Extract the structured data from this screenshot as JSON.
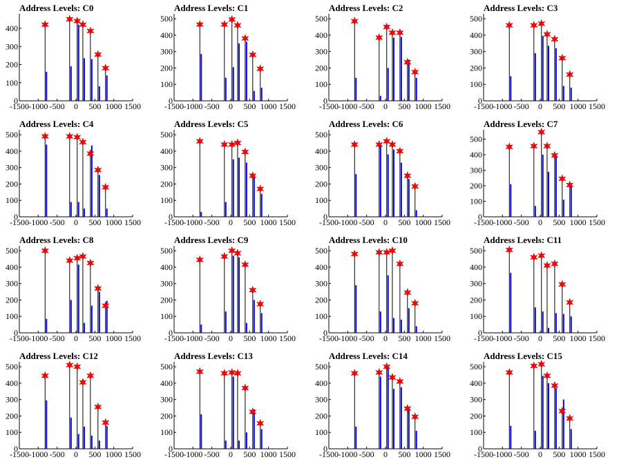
{
  "figure": {
    "tick_values": [
      -1500,
      -1000,
      -500,
      0,
      500,
      1000,
      1500
    ],
    "x_tick_labels": [
      "-1500",
      "-1000",
      "-500",
      "0",
      "500",
      "1000",
      "1500"
    ],
    "colors": {
      "histogram": "#0000ff",
      "marker": "#ff0000",
      "axis": "#000000"
    }
  },
  "chart_data": [
    {
      "type": "bar",
      "title": "Address Levels: C0",
      "xlim": [
        -1500,
        1500
      ],
      "ylim": [
        0,
        480
      ],
      "y_ticks": [
        "0",
        "100",
        "200",
        "300",
        "400"
      ],
      "x": [
        -800,
        -150,
        50,
        200,
        400,
        600,
        800
      ],
      "levels": [
        420,
        450,
        440,
        420,
        385,
        255,
        180
      ],
      "series": [
        {
          "values": [
            160,
            190,
            420,
            235,
            230,
            80,
            140
          ]
        }
      ]
    },
    {
      "type": "bar",
      "title": "Address Levels: C1",
      "xlim": [
        -1500,
        1500
      ],
      "ylim": [
        0,
        530
      ],
      "y_ticks": [
        "0",
        "100",
        "200",
        "300",
        "400",
        "500"
      ],
      "x": [
        -800,
        -150,
        50,
        200,
        400,
        600,
        800
      ],
      "levels": [
        465,
        465,
        495,
        460,
        380,
        280,
        195
      ],
      "series": [
        {
          "values": [
            285,
            140,
            205,
            350,
            360,
            60,
            80
          ]
        }
      ]
    },
    {
      "type": "bar",
      "title": "Address Levels: C2",
      "xlim": [
        -1500,
        1500
      ],
      "ylim": [
        0,
        530
      ],
      "y_ticks": [
        "0",
        "100",
        "200",
        "300",
        "400",
        "500"
      ],
      "x": [
        -800,
        -150,
        50,
        200,
        400,
        600,
        800
      ],
      "levels": [
        485,
        385,
        450,
        415,
        415,
        235,
        175
      ],
      "series": [
        {
          "values": [
            140,
            30,
            200,
            385,
            390,
            250,
            140
          ]
        }
      ]
    },
    {
      "type": "bar",
      "title": "Address Levels: C3",
      "xlim": [
        -1500,
        1500
      ],
      "ylim": [
        0,
        530
      ],
      "y_ticks": [
        "0",
        "100",
        "200",
        "300",
        "400",
        "500"
      ],
      "x": [
        -800,
        -150,
        50,
        200,
        400,
        600,
        800
      ],
      "levels": [
        460,
        460,
        470,
        405,
        375,
        260,
        160
      ],
      "series": [
        {
          "values": [
            150,
            290,
            395,
            335,
            320,
            90,
            80
          ]
        }
      ]
    },
    {
      "type": "bar",
      "title": "Address Levels: C4",
      "xlim": [
        -1500,
        1500
      ],
      "ylim": [
        0,
        530
      ],
      "y_ticks": [
        "0",
        "100",
        "200",
        "300",
        "400",
        "500"
      ],
      "x": [
        -800,
        -150,
        50,
        200,
        400,
        600,
        800
      ],
      "levels": [
        490,
        490,
        485,
        455,
        385,
        285,
        180
      ],
      "series": [
        {
          "values": [
            440,
            90,
            90,
            50,
            435,
            255,
            50
          ]
        }
      ]
    },
    {
      "type": "bar",
      "title": "Address Levels: C5",
      "xlim": [
        -1500,
        1500
      ],
      "ylim": [
        0,
        530
      ],
      "y_ticks": [
        "0",
        "100",
        "200",
        "300",
        "400",
        "500"
      ],
      "x": [
        -800,
        -150,
        50,
        200,
        400,
        600,
        800
      ],
      "levels": [
        460,
        440,
        440,
        450,
        395,
        250,
        170
      ],
      "series": [
        {
          "values": [
            30,
            90,
            350,
            360,
            330,
            240,
            140
          ]
        }
      ]
    },
    {
      "type": "bar",
      "title": "Address Levels: C6",
      "xlim": [
        -1500,
        1500
      ],
      "ylim": [
        0,
        530
      ],
      "y_ticks": [
        "0",
        "100",
        "200",
        "300",
        "400",
        "500"
      ],
      "x": [
        -800,
        -150,
        50,
        200,
        400,
        600,
        800
      ],
      "levels": [
        440,
        440,
        460,
        440,
        400,
        250,
        185
      ],
      "series": [
        {
          "values": [
            260,
            440,
            380,
            410,
            330,
            230,
            40
          ]
        }
      ]
    },
    {
      "type": "bar",
      "title": "Address Levels: C7",
      "xlim": [
        -1500,
        1500
      ],
      "ylim": [
        0,
        560
      ],
      "y_ticks": [
        "0",
        "100",
        "200",
        "300",
        "400",
        "500"
      ],
      "x": [
        -800,
        -150,
        50,
        200,
        400,
        600,
        800
      ],
      "levels": [
        450,
        455,
        545,
        455,
        395,
        245,
        205
      ],
      "series": [
        {
          "values": [
            210,
            70,
            400,
            290,
            390,
            110,
            200
          ]
        }
      ]
    },
    {
      "type": "bar",
      "title": "Address Levels: C8",
      "xlim": [
        -1500,
        1500
      ],
      "ylim": [
        0,
        530
      ],
      "y_ticks": [
        "0",
        "100",
        "200",
        "300",
        "400",
        "500"
      ],
      "x": [
        -800,
        -150,
        50,
        200,
        400,
        600,
        800
      ],
      "levels": [
        500,
        440,
        455,
        465,
        425,
        270,
        165
      ],
      "series": [
        {
          "values": [
            85,
            200,
            415,
            60,
            165,
            250,
            195
          ]
        }
      ]
    },
    {
      "type": "bar",
      "title": "Address Levels: C9",
      "xlim": [
        -1500,
        1500
      ],
      "ylim": [
        0,
        530
      ],
      "y_ticks": [
        "0",
        "100",
        "200",
        "300",
        "400",
        "500"
      ],
      "x": [
        -800,
        -150,
        50,
        200,
        400,
        600,
        800
      ],
      "levels": [
        445,
        465,
        500,
        485,
        415,
        260,
        175
      ],
      "series": [
        {
          "values": [
            50,
            130,
            470,
            460,
            60,
            200,
            120
          ]
        }
      ]
    },
    {
      "type": "bar",
      "title": "Address Levels: C10",
      "xlim": [
        -1500,
        1500
      ],
      "ylim": [
        0,
        530
      ],
      "y_ticks": [
        "0",
        "100",
        "200",
        "300",
        "400",
        "500"
      ],
      "x": [
        -800,
        -150,
        50,
        200,
        400,
        600,
        800
      ],
      "levels": [
        480,
        490,
        490,
        500,
        420,
        245,
        180
      ],
      "series": [
        {
          "values": [
            290,
            130,
            350,
            90,
            80,
            150,
            40
          ]
        }
      ]
    },
    {
      "type": "bar",
      "title": "Address Levels: C11",
      "xlim": [
        -1500,
        1500
      ],
      "ylim": [
        0,
        530
      ],
      "y_ticks": [
        "0",
        "100",
        "200",
        "300",
        "400",
        "500"
      ],
      "x": [
        -800,
        -150,
        50,
        200,
        400,
        600,
        800
      ],
      "levels": [
        505,
        460,
        470,
        410,
        420,
        295,
        185
      ],
      "series": [
        {
          "values": [
            365,
            155,
            130,
            30,
            120,
            115,
            100
          ]
        }
      ]
    },
    {
      "type": "bar",
      "title": "Address Levels: C12",
      "xlim": [
        -1500,
        1500
      ],
      "ylim": [
        0,
        530
      ],
      "y_ticks": [
        "0",
        "100",
        "200",
        "300",
        "400",
        "500"
      ],
      "x": [
        -800,
        -150,
        50,
        200,
        400,
        600,
        800
      ],
      "levels": [
        445,
        510,
        500,
        405,
        445,
        255,
        160
      ],
      "series": [
        {
          "values": [
            295,
            190,
            90,
            135,
            80,
            50,
            140
          ]
        }
      ]
    },
    {
      "type": "bar",
      "title": "Address Levels: C13",
      "xlim": [
        -1500,
        1500
      ],
      "ylim": [
        0,
        530
      ],
      "y_ticks": [
        "0",
        "100",
        "200",
        "300",
        "400",
        "500"
      ],
      "x": [
        -800,
        -150,
        50,
        200,
        400,
        600,
        800
      ],
      "levels": [
        470,
        460,
        465,
        460,
        370,
        225,
        155
      ],
      "series": [
        {
          "values": [
            210,
            50,
            440,
            50,
            100,
            240,
            120
          ]
        }
      ]
    },
    {
      "type": "bar",
      "title": "Address Levels: C14",
      "xlim": [
        -1500,
        1500
      ],
      "ylim": [
        0,
        530
      ],
      "y_ticks": [
        "0",
        "100",
        "200",
        "300",
        "400",
        "500"
      ],
      "x": [
        -800,
        -150,
        50,
        200,
        400,
        600,
        800
      ],
      "levels": [
        460,
        465,
        500,
        435,
        410,
        245,
        195
      ],
      "series": [
        {
          "values": [
            135,
            440,
            495,
            365,
            375,
            250,
            110
          ]
        }
      ]
    },
    {
      "type": "bar",
      "title": "Address Levels: C15",
      "xlim": [
        -1500,
        1500
      ],
      "ylim": [
        0,
        530
      ],
      "y_ticks": [
        "0",
        "100",
        "200",
        "300",
        "400",
        "500"
      ],
      "x": [
        -800,
        -150,
        50,
        200,
        400,
        600,
        800
      ],
      "levels": [
        465,
        505,
        515,
        445,
        385,
        230,
        185
      ],
      "series": [
        {
          "values": [
            140,
            110,
            445,
            400,
            370,
            300,
            120
          ]
        }
      ]
    }
  ]
}
